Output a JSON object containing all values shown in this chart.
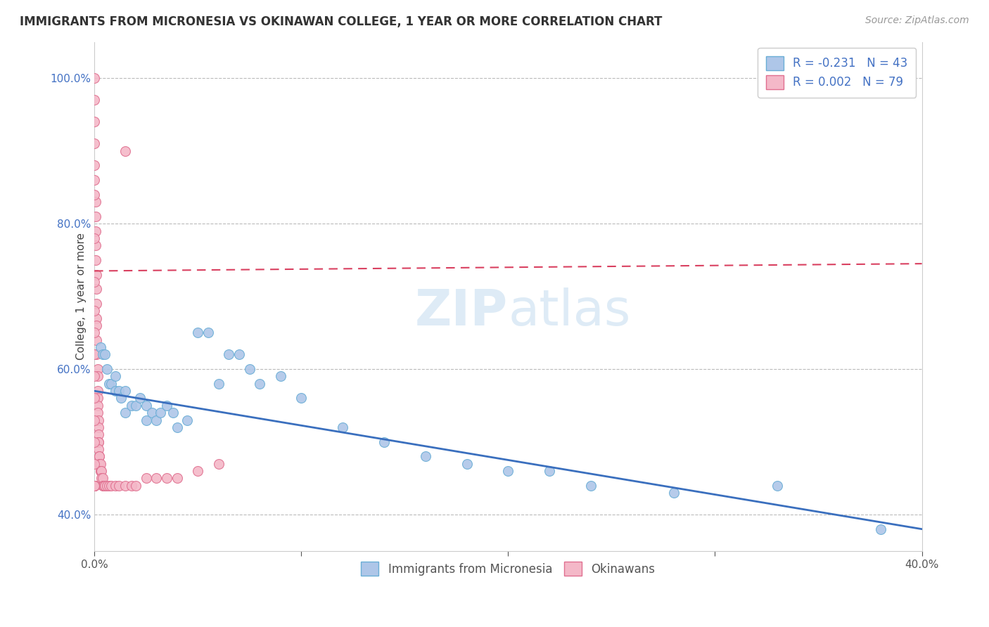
{
  "title": "IMMIGRANTS FROM MICRONESIA VS OKINAWAN COLLEGE, 1 YEAR OR MORE CORRELATION CHART",
  "source": "Source: ZipAtlas.com",
  "ylabel_label": "College, 1 year or more",
  "xlim": [
    0.0,
    40.0
  ],
  "ylim": [
    35.0,
    105.0
  ],
  "yticks": [
    40.0,
    60.0,
    80.0,
    100.0
  ],
  "ytick_labels": [
    "40.0%",
    "60.0%",
    "80.0%",
    "100.0%"
  ],
  "xticks": [
    0.0,
    10.0,
    20.0,
    30.0,
    40.0
  ],
  "xtick_labels": [
    "0.0%",
    "",
    "",
    "",
    "40.0%"
  ],
  "scatter_blue": {
    "x": [
      0.3,
      0.4,
      0.5,
      0.6,
      0.7,
      0.8,
      1.0,
      1.0,
      1.2,
      1.3,
      1.5,
      1.5,
      1.8,
      2.0,
      2.2,
      2.5,
      2.5,
      2.8,
      3.0,
      3.2,
      3.5,
      3.8,
      4.0,
      4.5,
      5.0,
      5.5,
      6.0,
      6.5,
      7.0,
      7.5,
      8.0,
      9.0,
      10.0,
      12.0,
      14.0,
      16.0,
      18.0,
      20.0,
      22.0,
      24.0,
      28.0,
      33.0,
      38.0
    ],
    "y": [
      63.0,
      62.0,
      62.0,
      60.0,
      58.0,
      58.0,
      59.0,
      57.0,
      57.0,
      56.0,
      57.0,
      54.0,
      55.0,
      55.0,
      56.0,
      53.0,
      55.0,
      54.0,
      53.0,
      54.0,
      55.0,
      54.0,
      52.0,
      53.0,
      65.0,
      65.0,
      58.0,
      62.0,
      62.0,
      60.0,
      58.0,
      59.0,
      56.0,
      52.0,
      50.0,
      48.0,
      47.0,
      46.0,
      46.0,
      44.0,
      43.0,
      44.0,
      38.0
    ]
  },
  "scatter_pink": {
    "x": [
      0.0,
      0.0,
      0.0,
      0.0,
      0.0,
      0.0,
      0.05,
      0.05,
      0.05,
      0.05,
      0.05,
      0.1,
      0.1,
      0.1,
      0.1,
      0.1,
      0.1,
      0.1,
      0.15,
      0.15,
      0.15,
      0.15,
      0.15,
      0.15,
      0.2,
      0.2,
      0.2,
      0.2,
      0.2,
      0.2,
      0.25,
      0.25,
      0.25,
      0.3,
      0.3,
      0.3,
      0.35,
      0.35,
      0.4,
      0.4,
      0.45,
      0.5,
      0.5,
      0.6,
      0.7,
      0.8,
      1.0,
      1.2,
      1.5,
      1.8,
      2.0,
      2.5,
      3.0,
      3.5,
      4.0,
      5.0,
      6.0,
      1.5,
      0.0,
      0.0,
      0.0,
      0.0,
      0.0,
      0.0,
      0.0,
      0.0,
      0.0,
      0.0,
      0.0,
      0.0,
      0.0,
      0.0,
      0.0,
      0.0,
      0.0,
      0.0,
      0.0,
      0.0,
      0.0
    ],
    "y": [
      100.0,
      97.0,
      94.0,
      91.0,
      88.0,
      86.0,
      83.0,
      81.0,
      79.0,
      77.0,
      75.0,
      73.0,
      71.0,
      69.0,
      67.0,
      66.0,
      64.0,
      62.0,
      60.0,
      59.0,
      57.0,
      56.0,
      55.0,
      54.0,
      53.0,
      52.0,
      51.0,
      50.0,
      50.0,
      49.0,
      48.0,
      48.0,
      47.0,
      47.0,
      46.0,
      46.0,
      46.0,
      45.0,
      45.0,
      44.0,
      44.0,
      44.0,
      44.0,
      44.0,
      44.0,
      44.0,
      44.0,
      44.0,
      44.0,
      44.0,
      44.0,
      45.0,
      45.0,
      45.0,
      45.0,
      46.0,
      47.0,
      90.0,
      84.0,
      78.0,
      72.0,
      68.0,
      65.0,
      62.0,
      59.0,
      56.0,
      53.0,
      50.0,
      47.0,
      44.0,
      44.0,
      44.0,
      44.0,
      44.0,
      44.0,
      44.0,
      44.0,
      44.0,
      44.0
    ]
  },
  "trendline_blue": {
    "x": [
      0.0,
      40.0
    ],
    "y": [
      57.0,
      38.0
    ]
  },
  "trendline_pink": {
    "x": [
      0.0,
      40.0
    ],
    "y": [
      73.5,
      74.5
    ]
  },
  "watermark": "ZIPatlas",
  "scatter_blue_color": "#aec6e8",
  "scatter_pink_color": "#f4b8c8",
  "scatter_blue_edge": "#6aaed6",
  "scatter_pink_edge": "#e07090",
  "trendline_blue_color": "#3a6fbe",
  "trendline_pink_color": "#d94060",
  "legend_text_color": "#4472c4",
  "title_color": "#333333",
  "source_color": "#999999",
  "grid_color": "#bbbbbb",
  "bottom_legend_color": "#555555"
}
